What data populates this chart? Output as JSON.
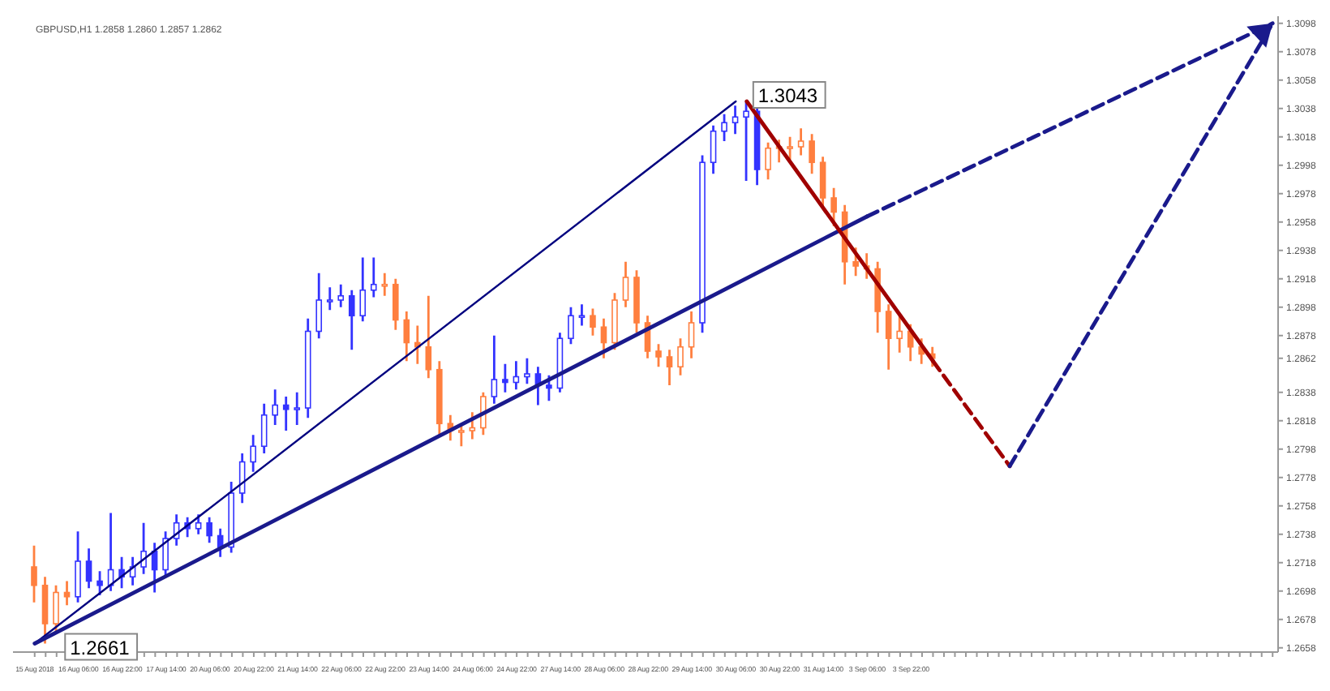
{
  "chart_data": {
    "type": "candlestick",
    "title": "GBPUSD,H1  1.2858 1.2860 1.2857 1.2862",
    "categories": [
      "15 Aug 2018",
      null,
      null,
      null,
      "16 Aug 06:00",
      null,
      null,
      null,
      "16 Aug 22:00",
      null,
      null,
      null,
      "17 Aug 14:00",
      null,
      null,
      null,
      "20 Aug 06:00",
      null,
      null,
      null,
      "20 Aug 22:00",
      null,
      null,
      null,
      "21 Aug 14:00",
      null,
      null,
      null,
      "22 Aug 06:00",
      null,
      null,
      null,
      "22 Aug 22:00",
      null,
      null,
      null,
      "23 Aug 14:00",
      null,
      null,
      null,
      "24 Aug 06:00",
      null,
      null,
      null,
      "24 Aug 22:00",
      null,
      null,
      null,
      "27 Aug 14:00",
      null,
      null,
      null,
      "28 Aug 06:00",
      null,
      null,
      null,
      "28 Aug 22:00",
      null,
      null,
      null,
      "29 Aug 14:00",
      null,
      null,
      null,
      "30 Aug 06:00",
      null,
      null,
      null,
      "30 Aug 22:00",
      null,
      null,
      null,
      "31 Aug 14:00",
      null,
      null,
      null,
      "3 Sep 06:00",
      null,
      null,
      null,
      "3 Sep 22:00",
      null,
      null,
      null,
      null,
      null,
      null,
      null,
      null,
      null,
      null,
      null,
      null,
      null,
      null,
      null,
      null,
      null,
      null,
      null,
      null,
      null,
      null,
      null,
      null,
      null,
      null,
      null,
      null,
      null,
      null,
      null,
      null,
      null
    ],
    "ohlc": [
      [
        1.2715,
        1.273,
        1.269,
        1.2702
      ],
      [
        1.2702,
        1.2708,
        1.2661,
        1.2675
      ],
      [
        1.2675,
        1.2702,
        1.2668,
        1.2697
      ],
      [
        1.2697,
        1.2705,
        1.2688,
        1.2694
      ],
      [
        1.2694,
        1.274,
        1.269,
        1.2719
      ],
      [
        1.2719,
        1.2728,
        1.27,
        1.2705
      ],
      [
        1.2705,
        1.2712,
        1.2695,
        1.2702
      ],
      [
        1.2702,
        1.2753,
        1.2698,
        1.2713
      ],
      [
        1.2713,
        1.2722,
        1.27,
        1.2708
      ],
      [
        1.2708,
        1.2722,
        1.2702,
        1.2715
      ],
      [
        1.2715,
        1.2746,
        1.271,
        1.2726
      ],
      [
        1.2726,
        1.2732,
        1.2697,
        1.2713
      ],
      [
        1.2713,
        1.274,
        1.2708,
        1.2735
      ],
      [
        1.2735,
        1.2752,
        1.273,
        1.2746
      ],
      [
        1.2746,
        1.275,
        1.2736,
        1.2742
      ],
      [
        1.2742,
        1.2752,
        1.2738,
        1.2746
      ],
      [
        1.2746,
        1.275,
        1.2732,
        1.2737
      ],
      [
        1.2737,
        1.2742,
        1.2722,
        1.2729
      ],
      [
        1.2729,
        1.2775,
        1.2725,
        1.2767
      ],
      [
        1.2767,
        1.2795,
        1.276,
        1.2789
      ],
      [
        1.2789,
        1.2808,
        1.2782,
        1.28
      ],
      [
        1.28,
        1.283,
        1.2795,
        1.2822
      ],
      [
        1.2822,
        1.284,
        1.2815,
        1.2829
      ],
      [
        1.2829,
        1.2835,
        1.2811,
        1.2826
      ],
      [
        1.2826,
        1.2838,
        1.2815,
        1.2827
      ],
      [
        1.2827,
        1.289,
        1.282,
        1.2881
      ],
      [
        1.2881,
        1.2922,
        1.2876,
        1.2903
      ],
      [
        1.2903,
        1.2912,
        1.2896,
        1.2903
      ],
      [
        1.2903,
        1.2914,
        1.2898,
        1.2906
      ],
      [
        1.2906,
        1.291,
        1.2868,
        1.2892
      ],
      [
        1.2892,
        1.2933,
        1.2888,
        1.291
      ],
      [
        1.291,
        1.2933,
        1.2905,
        1.2914
      ],
      [
        1.2914,
        1.2922,
        1.2906,
        1.2914
      ],
      [
        1.2914,
        1.2918,
        1.2882,
        1.2889
      ],
      [
        1.2889,
        1.2895,
        1.286,
        1.2873
      ],
      [
        1.2873,
        1.2885,
        1.2858,
        1.287
      ],
      [
        1.287,
        1.2906,
        1.2848,
        1.2854
      ],
      [
        1.2854,
        1.286,
        1.2808,
        1.2816
      ],
      [
        1.2816,
        1.2822,
        1.2804,
        1.2811
      ],
      [
        1.2811,
        1.2816,
        1.28,
        1.2811
      ],
      [
        1.2811,
        1.2824,
        1.2805,
        1.2813
      ],
      [
        1.2813,
        1.2838,
        1.2808,
        1.2835
      ],
      [
        1.2835,
        1.2878,
        1.283,
        1.2847
      ],
      [
        1.2847,
        1.2858,
        1.2838,
        1.2845
      ],
      [
        1.2845,
        1.286,
        1.284,
        1.2849
      ],
      [
        1.2849,
        1.2862,
        1.2844,
        1.2851
      ],
      [
        1.2851,
        1.2856,
        1.2829,
        1.2843
      ],
      [
        1.2843,
        1.285,
        1.2832,
        1.2841
      ],
      [
        1.2841,
        1.288,
        1.2838,
        1.2876
      ],
      [
        1.2876,
        1.2898,
        1.2872,
        1.2892
      ],
      [
        1.2892,
        1.29,
        1.2885,
        1.2892
      ],
      [
        1.2892,
        1.2897,
        1.2878,
        1.2884
      ],
      [
        1.2884,
        1.289,
        1.2862,
        1.2873
      ],
      [
        1.2873,
        1.2908,
        1.2868,
        1.2903
      ],
      [
        1.2903,
        1.293,
        1.2898,
        1.2919
      ],
      [
        1.2919,
        1.2924,
        1.288,
        1.2887
      ],
      [
        1.2887,
        1.2892,
        1.2862,
        1.2867
      ],
      [
        1.2867,
        1.2872,
        1.2856,
        1.2863
      ],
      [
        1.2863,
        1.2868,
        1.2843,
        1.2856
      ],
      [
        1.2856,
        1.2876,
        1.285,
        1.287
      ],
      [
        1.287,
        1.2895,
        1.2862,
        1.2887
      ],
      [
        1.2887,
        1.3005,
        1.288,
        1.3
      ],
      [
        1.3,
        1.3026,
        1.2992,
        1.3022
      ],
      [
        1.3022,
        1.3034,
        1.3015,
        1.3028
      ],
      [
        1.3028,
        1.304,
        1.302,
        1.3032
      ],
      [
        1.3032,
        1.3043,
        1.2987,
        1.3036
      ],
      [
        1.3036,
        1.304,
        1.2984,
        1.2995
      ],
      [
        1.2995,
        1.3014,
        1.2988,
        1.301
      ],
      [
        1.301,
        1.3016,
        1.3,
        1.3011
      ],
      [
        1.3011,
        1.3018,
        1.3002,
        1.3011
      ],
      [
        1.3011,
        1.3024,
        1.3005,
        1.3015
      ],
      [
        1.3015,
        1.302,
        1.2992,
        1.3
      ],
      [
        1.3,
        1.3004,
        1.2968,
        1.2975
      ],
      [
        1.2975,
        1.2982,
        1.2955,
        1.2965
      ],
      [
        1.2965,
        1.297,
        1.2914,
        1.293
      ],
      [
        1.293,
        1.294,
        1.292,
        1.2927
      ],
      [
        1.2927,
        1.2936,
        1.2918,
        1.2925
      ],
      [
        1.2925,
        1.293,
        1.288,
        1.2895
      ],
      [
        1.2895,
        1.29,
        1.2854,
        1.2876
      ],
      [
        1.2876,
        1.2892,
        1.2866,
        1.2881
      ],
      [
        1.2881,
        1.2886,
        1.286,
        1.287
      ],
      [
        1.287,
        1.2876,
        1.2858,
        1.2865
      ],
      [
        1.2865,
        1.287,
        1.2856,
        1.2862
      ],
      null,
      null,
      null,
      null,
      null,
      null,
      null,
      null,
      null,
      null,
      null,
      null,
      null,
      null,
      null,
      null,
      null,
      null,
      null,
      null,
      null,
      null,
      null,
      null,
      null,
      null,
      null,
      null,
      null,
      null,
      null
    ],
    "colors": [
      "#ff7f3f",
      "#ff7f3f",
      "#ff7f3f",
      "#ff7f3f",
      "#3333ff",
      "#3333ff",
      "#3333ff",
      "#3333ff",
      "#3333ff",
      "#3333ff",
      "#3333ff",
      "#3333ff",
      "#3333ff",
      "#3333ff",
      "#3333ff",
      "#3333ff",
      "#3333ff",
      "#3333ff",
      "#3333ff",
      "#3333ff",
      "#3333ff",
      "#3333ff",
      "#3333ff",
      "#3333ff",
      "#3333ff",
      "#3333ff",
      "#3333ff",
      "#3333ff",
      "#3333ff",
      "#3333ff",
      "#3333ff",
      "#3333ff",
      "#ff7f3f",
      "#ff7f3f",
      "#ff7f3f",
      "#ff7f3f",
      "#ff7f3f",
      "#ff7f3f",
      "#ff7f3f",
      "#ff7f3f",
      "#ff7f3f",
      "#ff7f3f",
      "#3333ff",
      "#3333ff",
      "#3333ff",
      "#3333ff",
      "#3333ff",
      "#3333ff",
      "#3333ff",
      "#3333ff",
      "#3333ff",
      "#ff7f3f",
      "#ff7f3f",
      "#ff7f3f",
      "#ff7f3f",
      "#ff7f3f",
      "#ff7f3f",
      "#ff7f3f",
      "#ff7f3f",
      "#ff7f3f",
      "#ff7f3f",
      "#3333ff",
      "#3333ff",
      "#3333ff",
      "#3333ff",
      "#3333ff",
      "#3333ff",
      "#ff7f3f",
      "#ff7f3f",
      "#ff7f3f",
      "#ff7f3f",
      "#ff7f3f",
      "#ff7f3f",
      "#ff7f3f",
      "#ff7f3f",
      "#ff7f3f",
      "#ff7f3f",
      "#ff7f3f",
      "#ff7f3f",
      "#ff7f3f",
      "#ff7f3f",
      "#ff7f3f",
      "#ff7f3f",
      null,
      null,
      null,
      null,
      null,
      null,
      null,
      null,
      null,
      null,
      null,
      null,
      null,
      null,
      null,
      null,
      null,
      null,
      null,
      null,
      null,
      null,
      null,
      null,
      null,
      null,
      null,
      null,
      null,
      null,
      null
    ],
    "series": [
      {
        "type": "line",
        "color": "#00007f",
        "line_style": "solid",
        "values": [
          1.2661,
          null,
          null,
          null,
          null,
          null,
          null,
          null,
          null,
          null,
          null,
          null,
          null,
          null,
          null,
          null,
          null,
          null,
          null,
          null,
          null,
          null,
          null,
          null,
          null,
          null,
          null,
          null,
          null,
          null,
          null,
          null,
          null,
          null,
          null,
          null,
          null,
          null,
          null,
          null,
          null,
          null,
          null,
          null,
          null,
          null,
          null,
          null,
          null,
          null,
          null,
          null,
          null,
          null,
          null,
          null,
          null,
          null,
          null,
          null,
          null,
          null,
          null,
          null,
          1.3043,
          null,
          null,
          null,
          null,
          null,
          null,
          null,
          null,
          null,
          null,
          null,
          null,
          null,
          null,
          null,
          null,
          null,
          null,
          null,
          null,
          null,
          null,
          null,
          null,
          null,
          null,
          null,
          null,
          null,
          null,
          null,
          null,
          null,
          null,
          null,
          null,
          null,
          null,
          null,
          null,
          null,
          null,
          null,
          null,
          null,
          null,
          null,
          null,
          null
        ]
      },
      {
        "type": "line",
        "color": "#1a1a8c",
        "line_style": "solid",
        "values": [
          1.2661,
          null,
          null,
          null,
          null,
          null,
          null,
          null,
          null,
          null,
          null,
          null,
          null,
          null,
          null,
          null,
          null,
          null,
          null,
          null,
          null,
          null,
          null,
          null,
          null,
          null,
          null,
          null,
          null,
          null,
          null,
          null,
          null,
          null,
          null,
          null,
          null,
          null,
          null,
          null,
          null,
          null,
          null,
          null,
          null,
          null,
          null,
          null,
          null,
          null,
          null,
          null,
          null,
          null,
          null,
          null,
          null,
          null,
          null,
          null,
          null,
          null,
          null,
          null,
          null,
          null,
          null,
          null,
          null,
          null,
          null,
          null,
          null,
          null,
          null,
          null,
          1.2962,
          null,
          null,
          null,
          null,
          null,
          null,
          null,
          null,
          null,
          null,
          null,
          null,
          null,
          null,
          null,
          null,
          null,
          null,
          null,
          null,
          null,
          null,
          null,
          null,
          null,
          null,
          null,
          null,
          null,
          null,
          null,
          null,
          null,
          null,
          null,
          null,
          null
        ]
      },
      {
        "type": "line",
        "color": "#1a1a8c",
        "line_style": "dashed",
        "values": [
          null,
          null,
          null,
          null,
          null,
          null,
          null,
          null,
          null,
          null,
          null,
          null,
          null,
          null,
          null,
          null,
          null,
          null,
          null,
          null,
          null,
          null,
          null,
          null,
          null,
          null,
          null,
          null,
          null,
          null,
          null,
          null,
          null,
          null,
          null,
          null,
          null,
          null,
          null,
          null,
          null,
          null,
          null,
          null,
          null,
          null,
          null,
          null,
          null,
          null,
          null,
          null,
          null,
          null,
          null,
          null,
          null,
          null,
          null,
          null,
          null,
          null,
          null,
          null,
          null,
          null,
          null,
          null,
          null,
          null,
          null,
          null,
          null,
          null,
          null,
          null,
          1.2962,
          null,
          null,
          null,
          null,
          null,
          null,
          null,
          null,
          null,
          null,
          null,
          null,
          null,
          null,
          null,
          null,
          null,
          null,
          null,
          null,
          null,
          null,
          null,
          null,
          null,
          null,
          null,
          null,
          null,
          null,
          null,
          null,
          null,
          null,
          null,
          null,
          1.3098
        ]
      },
      {
        "type": "line",
        "color": "#a00000",
        "line_style": "solid",
        "values": [
          null,
          null,
          null,
          null,
          null,
          null,
          null,
          null,
          null,
          null,
          null,
          null,
          null,
          null,
          null,
          null,
          null,
          null,
          null,
          null,
          null,
          null,
          null,
          null,
          null,
          null,
          null,
          null,
          null,
          null,
          null,
          null,
          null,
          null,
          null,
          null,
          null,
          null,
          null,
          null,
          null,
          null,
          null,
          null,
          null,
          null,
          null,
          null,
          null,
          null,
          null,
          null,
          null,
          null,
          null,
          null,
          null,
          null,
          null,
          null,
          null,
          null,
          null,
          null,
          null,
          1.3043,
          null,
          null,
          null,
          null,
          null,
          null,
          null,
          null,
          null,
          null,
          null,
          null,
          null,
          null,
          null,
          null,
          1.286,
          null,
          null,
          null,
          null,
          null,
          null,
          null,
          null,
          null,
          null,
          null,
          null,
          null,
          null,
          null,
          null,
          null,
          null,
          null,
          null,
          null,
          null,
          null,
          null,
          null,
          null,
          null,
          null,
          null,
          null,
          null
        ]
      },
      {
        "type": "line",
        "color": "#a00000",
        "line_style": "dashed",
        "values": [
          null,
          null,
          null,
          null,
          null,
          null,
          null,
          null,
          null,
          null,
          null,
          null,
          null,
          null,
          null,
          null,
          null,
          null,
          null,
          null,
          null,
          null,
          null,
          null,
          null,
          null,
          null,
          null,
          null,
          null,
          null,
          null,
          null,
          null,
          null,
          null,
          null,
          null,
          null,
          null,
          null,
          null,
          null,
          null,
          null,
          null,
          null,
          null,
          null,
          null,
          null,
          null,
          null,
          null,
          null,
          null,
          null,
          null,
          null,
          null,
          null,
          null,
          null,
          null,
          null,
          null,
          null,
          null,
          null,
          null,
          null,
          null,
          null,
          null,
          null,
          null,
          null,
          null,
          null,
          null,
          null,
          null,
          1.286,
          null,
          null,
          null,
          null,
          null,
          null,
          1.2786,
          null,
          null,
          null,
          null,
          null,
          null,
          null,
          null,
          null,
          null,
          null,
          null,
          null,
          null,
          null,
          null,
          null,
          null,
          null,
          null,
          null,
          null,
          null,
          null
        ]
      },
      {
        "type": "line",
        "color": "#1a1a8c",
        "line_style": "dashed",
        "values": [
          null,
          null,
          null,
          null,
          null,
          null,
          null,
          null,
          null,
          null,
          null,
          null,
          null,
          null,
          null,
          null,
          null,
          null,
          null,
          null,
          null,
          null,
          null,
          null,
          null,
          null,
          null,
          null,
          null,
          null,
          null,
          null,
          null,
          null,
          null,
          null,
          null,
          null,
          null,
          null,
          null,
          null,
          null,
          null,
          null,
          null,
          null,
          null,
          null,
          null,
          null,
          null,
          null,
          null,
          null,
          null,
          null,
          null,
          null,
          null,
          null,
          null,
          null,
          null,
          null,
          null,
          null,
          null,
          null,
          null,
          null,
          null,
          null,
          null,
          null,
          null,
          null,
          null,
          null,
          null,
          null,
          null,
          null,
          null,
          null,
          null,
          null,
          null,
          null,
          1.2786,
          null,
          null,
          null,
          null,
          null,
          null,
          null,
          null,
          null,
          null,
          null,
          null,
          null,
          null,
          null,
          null,
          null,
          null,
          null,
          null,
          null,
          null,
          null,
          1.3098
        ]
      }
    ],
    "annotations": [
      "1.2661",
      "1.3043"
    ],
    "ylim": [
      1.2655,
      1.3103
    ],
    "yticks": [
      {
        "value": 1.2658,
        "label": "1.2658"
      },
      {
        "value": 1.2678,
        "label": "1.2678"
      },
      {
        "value": 1.2698,
        "label": "1.2698"
      },
      {
        "value": 1.2718,
        "label": "1.2718"
      },
      {
        "value": 1.2738,
        "label": "1.2738"
      },
      {
        "value": 1.2758,
        "label": "1.2758"
      },
      {
        "value": 1.2778,
        "label": "1.2778"
      },
      {
        "value": 1.2798,
        "label": "1.2798"
      },
      {
        "value": 1.2818,
        "label": "1.2818"
      },
      {
        "value": 1.2838,
        "label": "1.2838"
      },
      {
        "value": 1.2862,
        "label": "1.2862"
      },
      {
        "value": 1.2878,
        "label": "1.2878"
      },
      {
        "value": 1.2898,
        "label": "1.2898"
      },
      {
        "value": 1.2918,
        "label": "1.2918"
      },
      {
        "value": 1.2938,
        "label": "1.2938"
      },
      {
        "value": 1.2958,
        "label": "1.2958"
      },
      {
        "value": 1.2978,
        "label": "1.2978"
      },
      {
        "value": 1.2998,
        "label": "1.2998"
      },
      {
        "value": 1.3018,
        "label": "1.3018"
      },
      {
        "value": 1.3038,
        "label": "1.3038"
      },
      {
        "value": 1.3058,
        "label": "1.3058"
      },
      {
        "value": 1.3078,
        "label": "1.3078"
      },
      {
        "value": 1.3098,
        "label": "1.3098"
      }
    ],
    "grid": false,
    "legend": false,
    "marker": "none"
  }
}
